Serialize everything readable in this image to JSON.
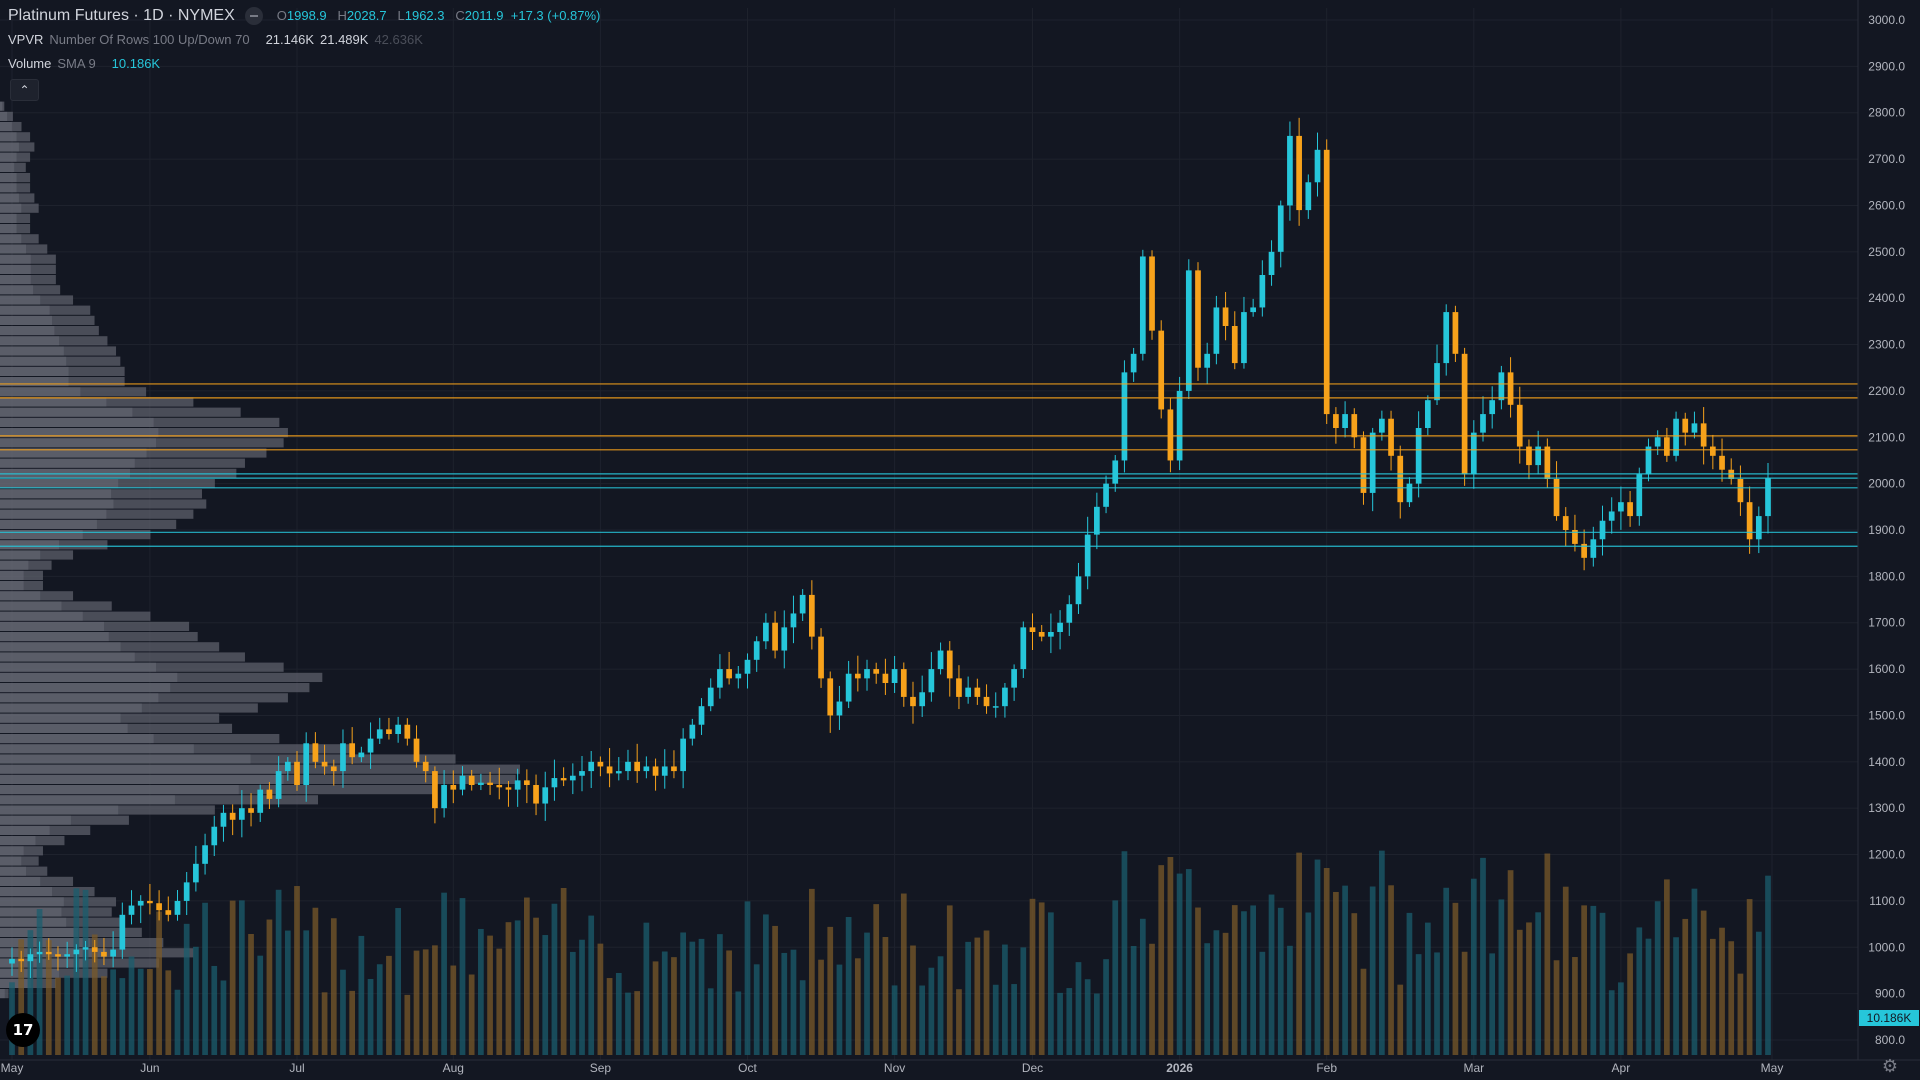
{
  "header": {
    "symbol": "Platinum Futures",
    "interval": "1D",
    "exchange": "NYMEX",
    "separator": "·",
    "open_label": "O",
    "open": "1998.9",
    "high_label": "H",
    "high": "2028.7",
    "low_label": "L",
    "low": "1962.3",
    "close_label": "C",
    "close": "2011.9",
    "change": "+17.3 (+0.87%)"
  },
  "indicators": {
    "vpvr": {
      "name": "VPVR",
      "params": "Number Of Rows 100 Up/Down 70",
      "v1": "21.146K",
      "v2": "21.489K",
      "v3": "42.636K"
    },
    "volume": {
      "name": "Volume",
      "params": "SMA 9",
      "value": "10.186K"
    }
  },
  "colors": {
    "up": "#26c6da",
    "down": "#f7a21b",
    "background": "#131722",
    "grid": "#1e222d",
    "text": "#d1d4dc",
    "muted": "#787b86",
    "profile": "#5d606b"
  },
  "icons": {
    "collapse": "chevron-up-icon",
    "logo": "tradingview-logo-icon",
    "settings": "gear-icon"
  },
  "chart_data": {
    "type": "candlestick",
    "title": "Platinum Futures · 1D · NYMEX",
    "ylim": [
      780,
      3010
    ],
    "y_ticks": [
      "800.0",
      "900.0",
      "1000.0",
      "1100.0",
      "1200.0",
      "1300.0",
      "1400.0",
      "1500.0",
      "1600.0",
      "1700.0",
      "1800.0",
      "1900.0",
      "2000.0",
      "2100.0",
      "2200.0",
      "2300.0",
      "2400.0",
      "2500.0",
      "2600.0",
      "2700.0",
      "2800.0",
      "2900.0",
      "3000.0"
    ],
    "x_ticks": [
      "May",
      "Jun",
      "Jul",
      "Aug",
      "Sep",
      "Oct",
      "Nov",
      "Dec",
      "2026",
      "Feb",
      "Mar",
      "Apr",
      "May"
    ],
    "close_series": [
      975,
      970,
      985,
      990,
      985,
      980,
      985,
      995,
      1000,
      990,
      980,
      995,
      1070,
      1090,
      1100,
      1095,
      1080,
      1070,
      1100,
      1140,
      1180,
      1220,
      1260,
      1290,
      1275,
      1300,
      1290,
      1340,
      1320,
      1380,
      1400,
      1350,
      1440,
      1400,
      1390,
      1380,
      1440,
      1410,
      1420,
      1450,
      1470,
      1460,
      1480,
      1450,
      1400,
      1380,
      1300,
      1350,
      1340,
      1370,
      1350,
      1355,
      1350,
      1345,
      1340,
      1360,
      1350,
      1310,
      1345,
      1365,
      1360,
      1370,
      1380,
      1400,
      1390,
      1375,
      1380,
      1400,
      1380,
      1390,
      1370,
      1390,
      1380,
      1450,
      1480,
      1520,
      1560,
      1600,
      1580,
      1590,
      1620,
      1660,
      1700,
      1640,
      1690,
      1720,
      1760,
      1670,
      1580,
      1500,
      1530,
      1590,
      1580,
      1600,
      1590,
      1570,
      1600,
      1540,
      1520,
      1550,
      1600,
      1640,
      1580,
      1540,
      1560,
      1540,
      1520,
      1520,
      1560,
      1600,
      1690,
      1680,
      1670,
      1680,
      1700,
      1740,
      1800,
      1890,
      1950,
      2000,
      2050,
      2240,
      2280,
      2490,
      2330,
      2160,
      2050,
      2200,
      2460,
      2250,
      2280,
      2380,
      2340,
      2260,
      2370,
      2380,
      2450,
      2500,
      2600,
      2750,
      2590,
      2650,
      2720,
      2150,
      2120,
      2150,
      2100,
      1980,
      2110,
      2140,
      2060,
      1960,
      2000,
      2120,
      2180,
      2260,
      2370,
      2280,
      2020,
      2110,
      2150,
      2180,
      2240,
      2170,
      2080,
      2040,
      2080,
      2010,
      1930,
      1900,
      1870,
      1840,
      1880,
      1920,
      1940,
      1960,
      1930,
      2020,
      2080,
      2100,
      2060,
      2140,
      2110,
      2130,
      2080,
      2060,
      2030,
      2010,
      1960,
      1880,
      1930,
      2012
    ],
    "volume_sma": "10.186K",
    "vpvr_point_of_control": "1430",
    "horizontal_levels": [
      {
        "value": "2215.0",
        "color": "#f7a21b"
      },
      {
        "value": "2185.0",
        "color": "#f7a21b"
      },
      {
        "value": "2103.0",
        "color": "#f7a21b"
      },
      {
        "value": "2073.0",
        "color": "#f7a21b"
      },
      {
        "value": "2021.0",
        "color": "#26c6da"
      },
      {
        "value": "2011.9",
        "color": "#26c6da"
      },
      {
        "value": "1991.0",
        "color": "#26c6da"
      },
      {
        "value": "1895.0",
        "color": "#26c6da"
      },
      {
        "value": "1865.0",
        "color": "#26c6da"
      }
    ]
  }
}
